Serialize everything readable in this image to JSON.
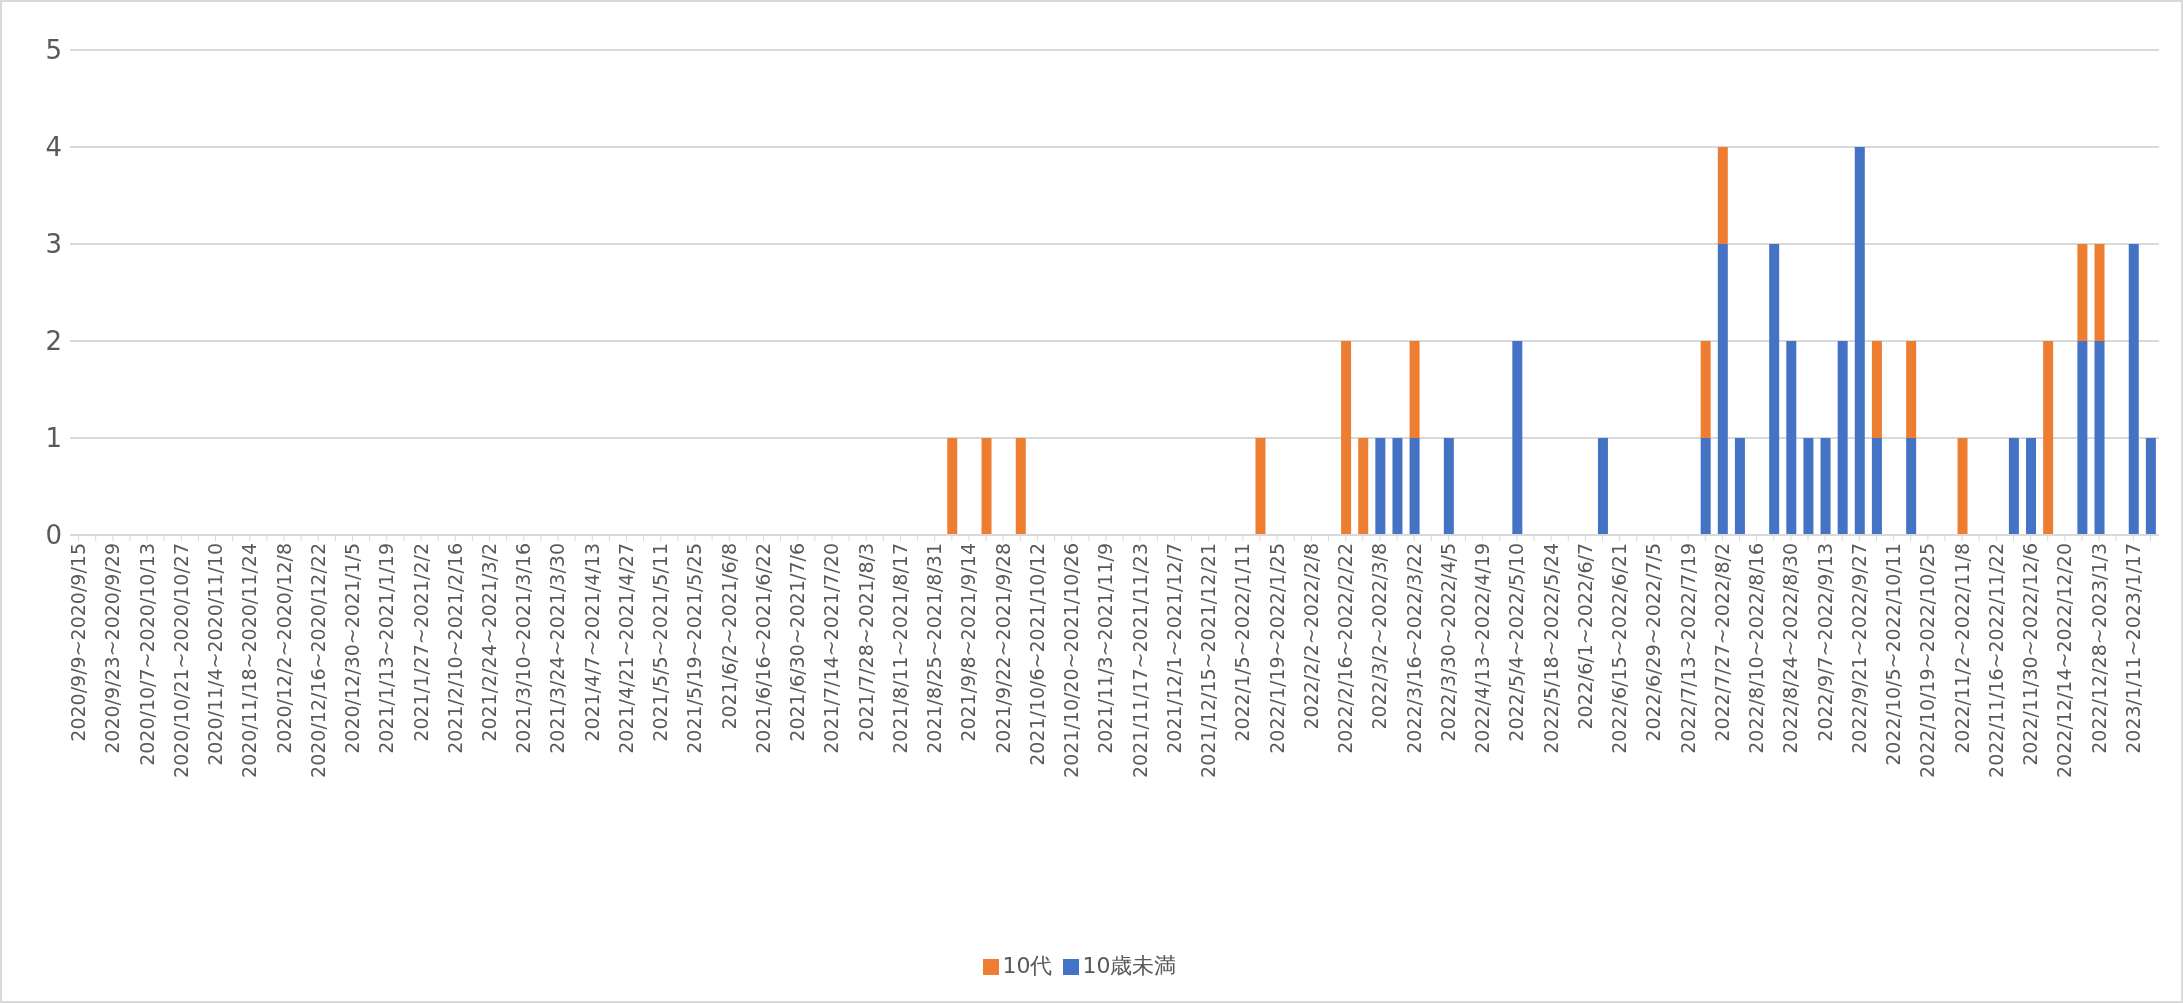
{
  "chart_data": {
    "type": "bar",
    "stacked": true,
    "grid": "y",
    "legend": "bottom",
    "ylim": [
      0,
      5
    ],
    "yticks": [
      0,
      1,
      2,
      3,
      4,
      5
    ],
    "categories": [
      "2020/9/9~2020/9/15",
      null,
      "2020/9/23~2020/9/29",
      null,
      "2020/10/7~2020/10/13",
      null,
      "2020/10/21~2020/10/27",
      null,
      "2020/11/4~2020/11/10",
      null,
      "2020/11/18~2020/11/24",
      null,
      "2020/12/2~2020/12/8",
      null,
      "2020/12/16~2020/12/22",
      null,
      "2020/12/30~2021/1/5",
      null,
      "2021/1/13~2021/1/19",
      null,
      "2021/1/27~2021/2/2",
      null,
      "2021/2/10~2021/2/16",
      null,
      "2021/2/24~2021/3/2",
      null,
      "2021/3/10~2021/3/16",
      null,
      "2021/3/24~2021/3/30",
      null,
      "2021/4/7~2021/4/13",
      null,
      "2021/4/21~2021/4/27",
      null,
      "2021/5/5~2021/5/11",
      null,
      "2021/5/19~2021/5/25",
      null,
      "2021/6/2~2021/6/8",
      null,
      "2021/6/16~2021/6/22",
      null,
      "2021/6/30~2021/7/6",
      null,
      "2021/7/14~2021/7/20",
      null,
      "2021/7/28~2021/8/3",
      null,
      "2021/8/11~2021/8/17",
      null,
      "2021/8/25~2021/8/31",
      null,
      "2021/9/8~2021/9/14",
      null,
      "2021/9/22~2021/9/28",
      null,
      "2021/10/6~2021/10/12",
      null,
      "2021/10/20~2021/10/26",
      null,
      "2021/11/3~2021/11/9",
      null,
      "2021/11/17~2021/11/23",
      null,
      "2021/12/1~2021/12/7",
      null,
      "2021/12/15~2021/12/21",
      null,
      "2022/1/5~2022/1/11",
      null,
      "2022/1/19~2022/1/25",
      null,
      "2022/2/2~2022/2/8",
      null,
      "2022/2/16~2022/2/22",
      null,
      "2022/3/2~2022/3/8",
      null,
      "2022/3/16~2022/3/22",
      null,
      "2022/3/30~2022/4/5",
      null,
      "2022/4/13~2022/4/19",
      null,
      "2022/5/4~2022/5/10",
      null,
      "2022/5/18~2022/5/24",
      null,
      "2022/6/1~2022/6/7",
      null,
      "2022/6/15~2022/6/21",
      null,
      "2022/6/29~2022/7/5",
      null,
      "2022/7/13~2022/7/19",
      null,
      "2022/7/27~2022/8/2",
      null,
      "2022/8/10~2022/8/16",
      null,
      "2022/8/24~2022/8/30",
      null,
      "2022/9/7~2022/9/13",
      null,
      "2022/9/21~2022/9/27",
      null,
      "2022/10/5~2022/10/11",
      null,
      "2022/10/19~2022/10/25",
      null,
      "2022/11/2~2022/11/8",
      null,
      "2022/11/16~2022/11/22",
      null,
      "2022/11/30~2022/12/6",
      null,
      "2022/12/14~2022/12/20",
      null,
      "2022/12/28~2023/1/3",
      null,
      "2023/1/11~2023/1/17",
      null
    ],
    "series": [
      {
        "name": "10歳未満",
        "color": "#4472c4",
        "values": [
          0,
          0,
          0,
          0,
          0,
          0,
          0,
          0,
          0,
          0,
          0,
          0,
          0,
          0,
          0,
          0,
          0,
          0,
          0,
          0,
          0,
          0,
          0,
          0,
          0,
          0,
          0,
          0,
          0,
          0,
          0,
          0,
          0,
          0,
          0,
          0,
          0,
          0,
          0,
          0,
          0,
          0,
          0,
          0,
          0,
          0,
          0,
          0,
          0,
          0,
          0,
          0,
          0,
          0,
          0,
          0,
          0,
          0,
          0,
          0,
          0,
          0,
          0,
          0,
          0,
          0,
          0,
          0,
          0,
          0,
          0,
          0,
          0,
          0,
          0,
          0,
          1,
          1,
          1,
          0,
          1,
          0,
          0,
          0,
          2,
          0,
          0,
          0,
          0,
          1,
          0,
          0,
          0,
          0,
          0,
          1,
          3,
          1,
          0,
          3,
          2,
          1,
          1,
          2,
          4,
          1,
          0,
          1,
          0,
          0,
          0,
          0,
          0,
          1,
          1,
          0,
          0,
          2,
          2,
          0,
          3,
          1
        ]
      },
      {
        "name": "10代",
        "color": "#ed7d31",
        "values": [
          0,
          0,
          0,
          0,
          0,
          0,
          0,
          0,
          0,
          0,
          0,
          0,
          0,
          0,
          0,
          0,
          0,
          0,
          0,
          0,
          0,
          0,
          0,
          0,
          0,
          0,
          0,
          0,
          0,
          0,
          0,
          0,
          0,
          0,
          0,
          0,
          0,
          0,
          0,
          0,
          0,
          0,
          0,
          0,
          0,
          0,
          0,
          0,
          0,
          0,
          0,
          1,
          0,
          1,
          0,
          1,
          0,
          0,
          0,
          0,
          0,
          0,
          0,
          0,
          0,
          0,
          0,
          0,
          0,
          1,
          0,
          0,
          0,
          0,
          2,
          1,
          0,
          0,
          1,
          0,
          0,
          0,
          0,
          0,
          0,
          0,
          0,
          0,
          0,
          0,
          0,
          0,
          0,
          0,
          0,
          1,
          1,
          0,
          0,
          0,
          0,
          0,
          0,
          0,
          0,
          1,
          0,
          1,
          0,
          0,
          1,
          0,
          0,
          0,
          0,
          2,
          0,
          1,
          1,
          0,
          0,
          0
        ]
      }
    ]
  }
}
